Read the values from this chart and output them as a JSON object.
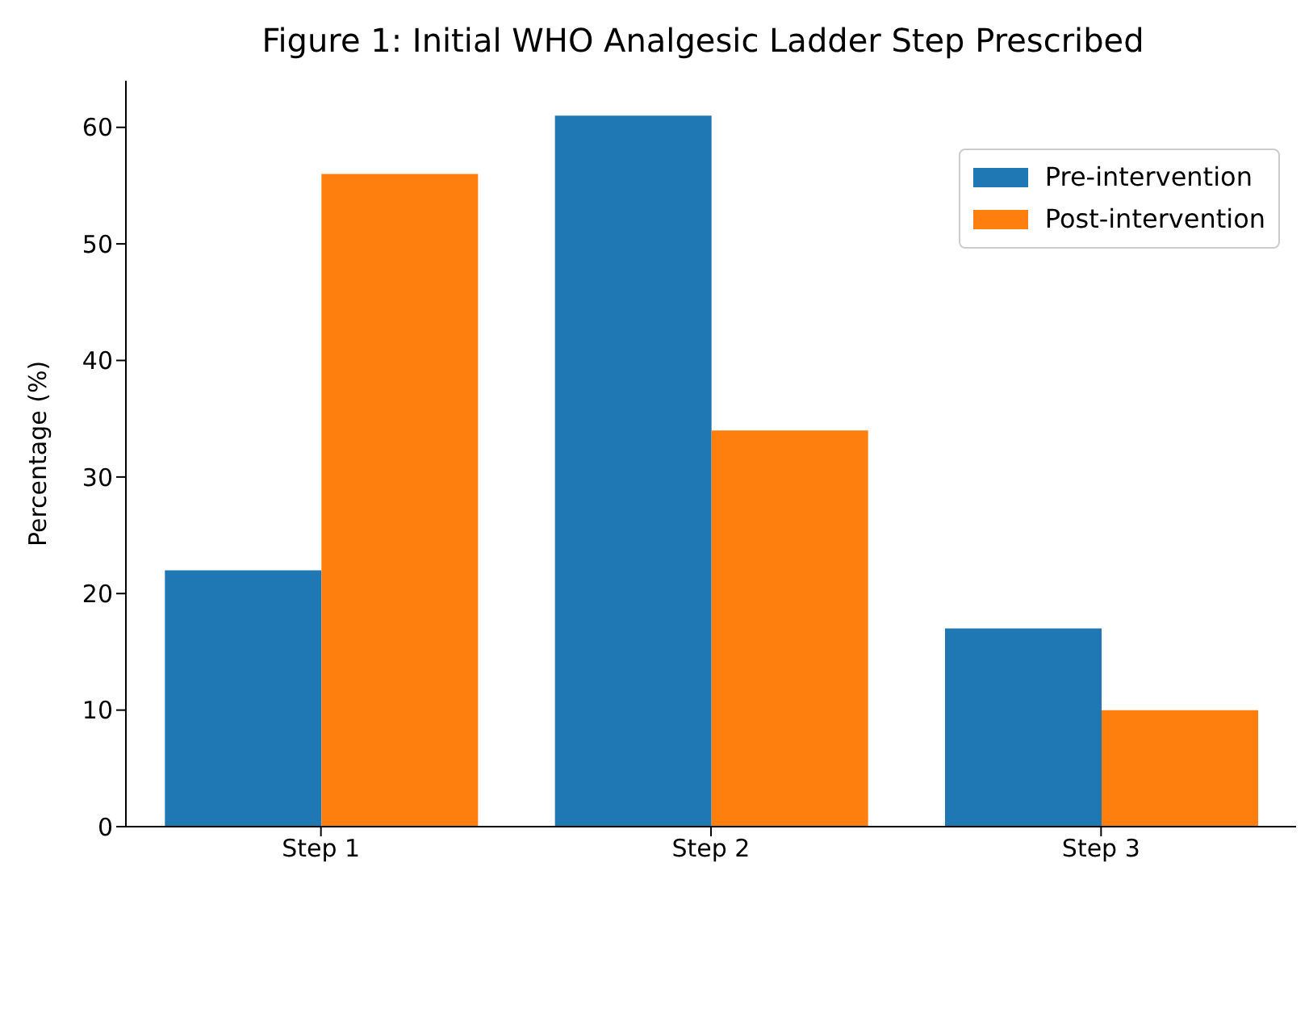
{
  "chart_data": {
    "type": "bar",
    "title": "Figure 1: Initial WHO Analgesic Ladder Step Prescribed",
    "ylabel": "Percentage (%)",
    "categories": [
      "Step 1",
      "Step 2",
      "Step 3"
    ],
    "series": [
      {
        "name": "Pre-intervention",
        "color": "#1f77b4",
        "values": [
          22,
          61,
          17
        ]
      },
      {
        "name": "Post-intervention",
        "color": "#ff7f0e",
        "values": [
          56,
          34,
          10
        ]
      }
    ],
    "ylim": [
      0,
      64
    ],
    "yticks": [
      0,
      10,
      20,
      30,
      40,
      50,
      60
    ],
    "grid": false,
    "legend": "top right"
  }
}
